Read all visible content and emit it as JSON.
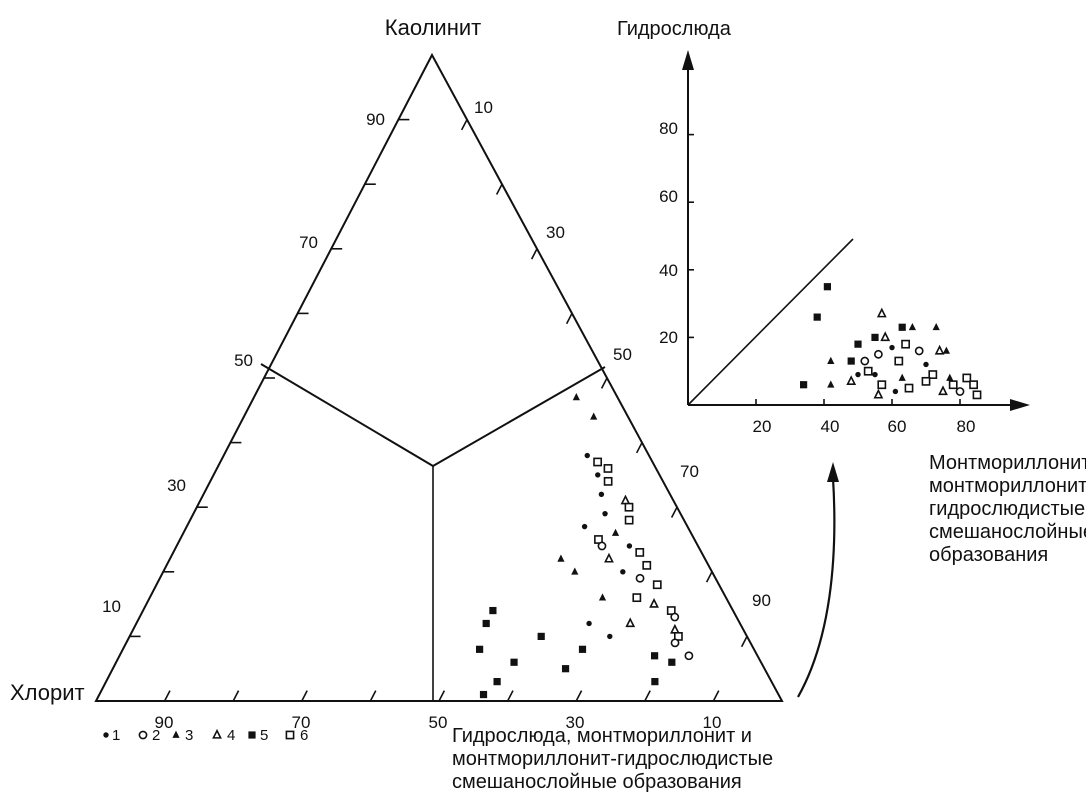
{
  "ternary": {
    "apex_top_label": "Каолинит",
    "apex_left_label": "Хлорит",
    "bottom_right_label": [
      "Гидрослюда, монтмориллонит и",
      "монтмориллонит-гидрослюдистые",
      "смешанослойные образования"
    ],
    "left_ticks": [
      "90",
      "70",
      "50",
      "30",
      "10"
    ],
    "right_ticks": [
      "10",
      "30",
      "50",
      "70",
      "90"
    ],
    "bottom_ticks": [
      "90",
      "70",
      "50",
      "30",
      "10"
    ]
  },
  "inset": {
    "y_axis_label": "Гидрослюда",
    "x_axis_label": [
      "Монтмориллонит и",
      "монтмориллонит-",
      "гидрослюдистые",
      "смешанослойные",
      "образования"
    ],
    "y_ticks": [
      "80",
      "60",
      "40",
      "20"
    ],
    "x_ticks": [
      "20",
      "40",
      "60",
      "80"
    ]
  },
  "legend": [
    {
      "symbol": "dot",
      "label": "1"
    },
    {
      "symbol": "circle",
      "label": "2"
    },
    {
      "symbol": "tri-filled",
      "label": "3"
    },
    {
      "symbol": "tri-open",
      "label": "4"
    },
    {
      "symbol": "square-filled",
      "label": "5"
    },
    {
      "symbol": "square-open",
      "label": "6"
    }
  ],
  "ternary_points": [
    {
      "s": "tri-filled",
      "kao": 47,
      "hyd": 47
    },
    {
      "s": "tri-filled",
      "kao": 44,
      "hyd": 51
    },
    {
      "s": "dot",
      "kao": 38,
      "hyd": 53
    },
    {
      "s": "square-open",
      "kao": 37,
      "hyd": 55
    },
    {
      "s": "square-open",
      "kao": 36,
      "hyd": 57
    },
    {
      "s": "dot",
      "kao": 35,
      "hyd": 56
    },
    {
      "s": "square-open",
      "kao": 34,
      "hyd": 58
    },
    {
      "s": "dot",
      "kao": 32,
      "hyd": 58
    },
    {
      "s": "tri-open",
      "kao": 31,
      "hyd": 62
    },
    {
      "s": "square-open",
      "kao": 30,
      "hyd": 63
    },
    {
      "s": "dot",
      "kao": 29,
      "hyd": 60
    },
    {
      "s": "square-open",
      "kao": 28,
      "hyd": 64
    },
    {
      "s": "dot",
      "kao": 27,
      "hyd": 58
    },
    {
      "s": "tri-filled",
      "kao": 26,
      "hyd": 63
    },
    {
      "s": "square-open",
      "kao": 25,
      "hyd": 61
    },
    {
      "s": "circle",
      "kao": 24,
      "hyd": 62
    },
    {
      "s": "dot",
      "kao": 24,
      "hyd": 66
    },
    {
      "s": "square-open",
      "kao": 23,
      "hyd": 68
    },
    {
      "s": "tri-filled",
      "kao": 22,
      "hyd": 57
    },
    {
      "s": "tri-open",
      "kao": 22,
      "hyd": 64
    },
    {
      "s": "square-open",
      "kao": 21,
      "hyd": 70
    },
    {
      "s": "tri-filled",
      "kao": 20,
      "hyd": 60
    },
    {
      "s": "dot",
      "kao": 20,
      "hyd": 67
    },
    {
      "s": "circle",
      "kao": 19,
      "hyd": 70
    },
    {
      "s": "square-open",
      "kao": 18,
      "hyd": 73
    },
    {
      "s": "tri-filled",
      "kao": 16,
      "hyd": 66
    },
    {
      "s": "square-open",
      "kao": 16,
      "hyd": 71
    },
    {
      "s": "tri-open",
      "kao": 15,
      "hyd": 74
    },
    {
      "s": "square-filled",
      "kao": 14,
      "hyd": 51
    },
    {
      "s": "square-open",
      "kao": 14,
      "hyd": 77
    },
    {
      "s": "circle",
      "kao": 13,
      "hyd": 78
    },
    {
      "s": "square-filled",
      "kao": 12,
      "hyd": 51
    },
    {
      "s": "tri-open",
      "kao": 12,
      "hyd": 72
    },
    {
      "s": "dot",
      "kao": 12,
      "hyd": 66
    },
    {
      "s": "tri-open",
      "kao": 11,
      "hyd": 79
    },
    {
      "s": "square-open",
      "kao": 10,
      "hyd": 80
    },
    {
      "s": "square-filled",
      "kao": 10,
      "hyd": 60
    },
    {
      "s": "dot",
      "kao": 10,
      "hyd": 70
    },
    {
      "s": "circle",
      "kao": 9,
      "hyd": 80
    },
    {
      "s": "square-filled",
      "kao": 8,
      "hyd": 52
    },
    {
      "s": "square-filled",
      "kao": 8,
      "hyd": 67
    },
    {
      "s": "square-filled",
      "kao": 7,
      "hyd": 78
    },
    {
      "s": "circle",
      "kao": 7,
      "hyd": 83
    },
    {
      "s": "square-filled",
      "kao": 6,
      "hyd": 58
    },
    {
      "s": "square-filled",
      "kao": 6,
      "hyd": 81
    },
    {
      "s": "square-filled",
      "kao": 5,
      "hyd": 66
    },
    {
      "s": "square-filled",
      "kao": 3,
      "hyd": 80
    },
    {
      "s": "square-filled",
      "kao": 3,
      "hyd": 57
    },
    {
      "s": "square-filled",
      "kao": 1,
      "hyd": 56
    }
  ],
  "inset_points": [
    {
      "s": "square-filled",
      "x": 41,
      "y": 35
    },
    {
      "s": "square-filled",
      "x": 38,
      "y": 26
    },
    {
      "s": "square-filled",
      "x": 34,
      "y": 6
    },
    {
      "s": "tri-filled",
      "x": 42,
      "y": 13
    },
    {
      "s": "tri-filled",
      "x": 42,
      "y": 6
    },
    {
      "s": "square-filled",
      "x": 50,
      "y": 18
    },
    {
      "s": "square-filled",
      "x": 48,
      "y": 13
    },
    {
      "s": "circle",
      "x": 52,
      "y": 13
    },
    {
      "s": "tri-open",
      "x": 48,
      "y": 7
    },
    {
      "s": "square-open",
      "x": 53,
      "y": 10
    },
    {
      "s": "dot",
      "x": 50,
      "y": 9
    },
    {
      "s": "tri-open",
      "x": 57,
      "y": 27
    },
    {
      "s": "square-filled",
      "x": 55,
      "y": 20
    },
    {
      "s": "circle",
      "x": 56,
      "y": 15
    },
    {
      "s": "tri-open",
      "x": 58,
      "y": 20
    },
    {
      "s": "dot",
      "x": 55,
      "y": 9
    },
    {
      "s": "square-open",
      "x": 57,
      "y": 6
    },
    {
      "s": "tri-open",
      "x": 56,
      "y": 3
    },
    {
      "s": "square-filled",
      "x": 63,
      "y": 23
    },
    {
      "s": "tri-filled",
      "x": 66,
      "y": 23
    },
    {
      "s": "dot",
      "x": 60,
      "y": 17
    },
    {
      "s": "square-open",
      "x": 62,
      "y": 13
    },
    {
      "s": "tri-filled",
      "x": 63,
      "y": 8
    },
    {
      "s": "dot",
      "x": 61,
      "y": 4
    },
    {
      "s": "square-open",
      "x": 65,
      "y": 5
    },
    {
      "s": "circle",
      "x": 68,
      "y": 16
    },
    {
      "s": "square-open",
      "x": 64,
      "y": 18
    },
    {
      "s": "dot",
      "x": 70,
      "y": 12
    },
    {
      "s": "square-open",
      "x": 72,
      "y": 9
    },
    {
      "s": "tri-filled",
      "x": 73,
      "y": 23
    },
    {
      "s": "tri-open",
      "x": 74,
      "y": 16
    },
    {
      "s": "tri-filled",
      "x": 76,
      "y": 16
    },
    {
      "s": "square-open",
      "x": 70,
      "y": 7
    },
    {
      "s": "tri-open",
      "x": 75,
      "y": 4
    },
    {
      "s": "square-open",
      "x": 78,
      "y": 6
    },
    {
      "s": "square-open",
      "x": 82,
      "y": 8
    },
    {
      "s": "tri-filled",
      "x": 77,
      "y": 8
    },
    {
      "s": "square-open",
      "x": 84,
      "y": 6
    },
    {
      "s": "square-open",
      "x": 85,
      "y": 3
    },
    {
      "s": "circle",
      "x": 80,
      "y": 4
    }
  ]
}
